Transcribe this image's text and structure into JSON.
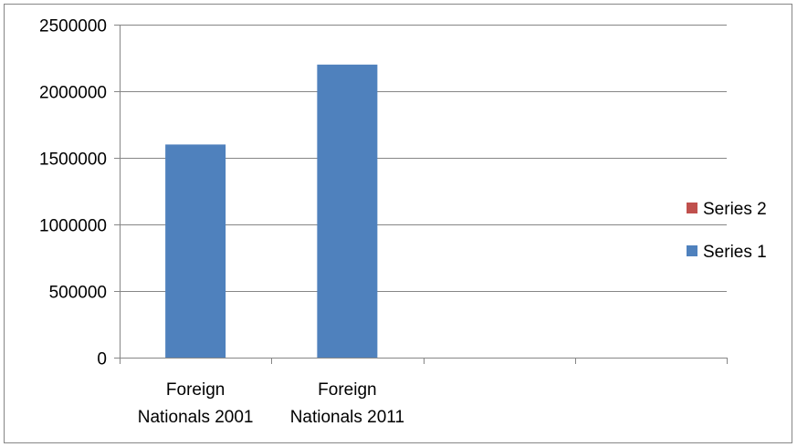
{
  "chart_data": {
    "type": "bar",
    "categories": [
      [
        "Foreign",
        "Nationals 2001"
      ],
      [
        "Foreign",
        "Nationals 2011"
      ],
      [
        ""
      ],
      [
        ""
      ]
    ],
    "series": [
      {
        "name": "Series 1",
        "color": "#4F81BD",
        "values": [
          1600000,
          2200000,
          null,
          null
        ]
      },
      {
        "name": "Series 2",
        "color": "#C0504D",
        "values": [
          null,
          null,
          null,
          null
        ]
      }
    ],
    "ylim": [
      0,
      2500000
    ],
    "yticks": [
      0,
      500000,
      1000000,
      1500000,
      2000000,
      2500000
    ],
    "ytick_labels": [
      "0",
      "500000",
      "1000000",
      "1500000",
      "2000000",
      "2500000"
    ],
    "grid": true,
    "legend_position": "right",
    "legend_order": [
      "Series 2",
      "Series 1"
    ],
    "title": "",
    "xlabel": "",
    "ylabel": ""
  }
}
